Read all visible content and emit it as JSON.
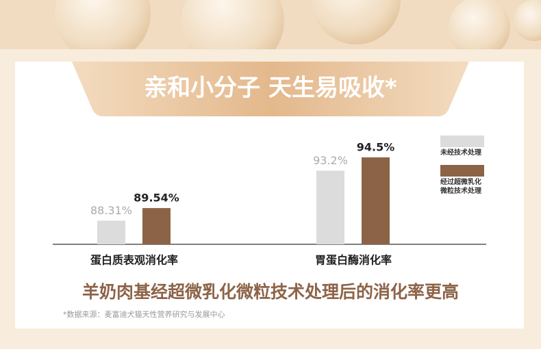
{
  "chart_data": {
    "type": "bar",
    "title": "亲和小分子 天生易吸收*",
    "categories": [
      "蛋白质表观消化率",
      "胃蛋白酶消化率"
    ],
    "series": [
      {
        "name": "未经技术处理",
        "color": "#dcdcdc",
        "values": [
          88.31,
          93.2
        ],
        "value_labels": [
          "88.31%",
          "93.2%"
        ]
      },
      {
        "name": "经过超微乳化微粒技术处理",
        "color": "#8d6348",
        "values": [
          89.54,
          94.5
        ],
        "value_labels": [
          "89.54%",
          "94.5%"
        ]
      }
    ],
    "ylim": [
      86,
      95.5
    ],
    "headline": "羊奶肉基经超微乳化微粒技术处理后的消化率更高",
    "source": "*数据来源：麦富迪犬猫天性营养研究与发展中心"
  }
}
